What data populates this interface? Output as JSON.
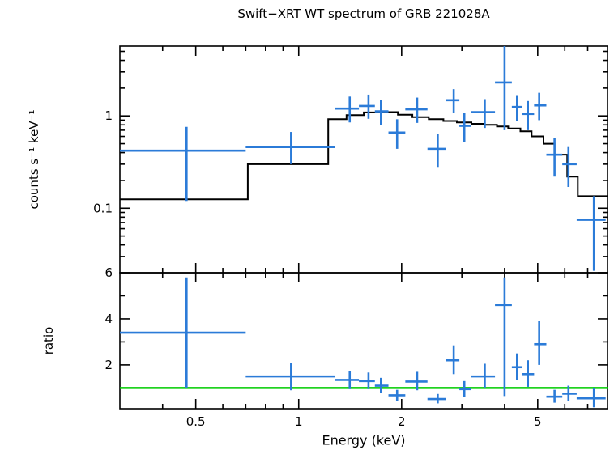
{
  "page": {
    "background": "#ffffff"
  },
  "chart_data": {
    "type": "scatter",
    "title": "Swift−XRT WT spectrum of GRB 221028A",
    "xlabel": "Energy (keV)",
    "x_scale": "log",
    "x_range": [
      0.3,
      8.0
    ],
    "x_ticks_labeled": [
      0.5,
      1,
      2,
      5
    ],
    "x_ticks_minor": [
      0.4,
      0.6,
      0.7,
      0.8,
      0.9,
      3,
      4,
      6,
      7
    ],
    "legend": "none",
    "grid": "off",
    "colors": {
      "data": "#2b7bd8",
      "model": "#000000",
      "ratio_line": "#00cc00",
      "frame": "#000000",
      "background": "#ffffff"
    },
    "panels": [
      {
        "name": "spectrum",
        "ylabel": "counts s⁻¹ keV⁻¹",
        "y_scale": "log",
        "y_range": [
          0.02,
          5.7
        ],
        "y_ticks_labeled": [
          0.1,
          1
        ],
        "y_ticks_minor": [
          0.03,
          0.04,
          0.05,
          0.06,
          0.07,
          0.08,
          0.09,
          0.2,
          0.3,
          0.4,
          0.5,
          0.6,
          0.7,
          0.8,
          0.9,
          2,
          3,
          4,
          5
        ],
        "point_format": [
          "x",
          "xlow",
          "xhigh",
          "y",
          "ylow",
          "yhigh"
        ],
        "points": [
          [
            0.47,
            0.3,
            0.7,
            0.42,
            0.12,
            0.76
          ],
          [
            0.95,
            0.7,
            1.28,
            0.46,
            0.3,
            0.67
          ],
          [
            1.41,
            1.28,
            1.5,
            1.2,
            0.85,
            1.62
          ],
          [
            1.6,
            1.5,
            1.67,
            1.28,
            0.93,
            1.7
          ],
          [
            1.74,
            1.67,
            1.83,
            1.12,
            0.8,
            1.5
          ],
          [
            1.94,
            1.83,
            2.05,
            0.66,
            0.44,
            0.92
          ],
          [
            2.22,
            2.05,
            2.38,
            1.18,
            0.84,
            1.58
          ],
          [
            2.55,
            2.38,
            2.7,
            0.44,
            0.28,
            0.64
          ],
          [
            2.84,
            2.7,
            2.95,
            1.48,
            1.08,
            1.95
          ],
          [
            3.05,
            2.95,
            3.2,
            0.78,
            0.52,
            1.08
          ],
          [
            3.5,
            3.2,
            3.75,
            1.1,
            0.74,
            1.52
          ],
          [
            4.0,
            3.75,
            4.2,
            2.3,
            0.7,
            5.7
          ],
          [
            4.35,
            4.2,
            4.5,
            1.25,
            0.88,
            1.68
          ],
          [
            4.68,
            4.5,
            4.88,
            1.05,
            0.7,
            1.45
          ],
          [
            5.05,
            4.88,
            5.3,
            1.3,
            0.9,
            1.78
          ],
          [
            5.6,
            5.3,
            5.9,
            0.38,
            0.22,
            0.58
          ],
          [
            6.15,
            5.9,
            6.5,
            0.3,
            0.17,
            0.46
          ],
          [
            7.3,
            6.5,
            7.9,
            0.075,
            0.021,
            0.135
          ]
        ],
        "model_step_format": [
          "e_low",
          "e_high",
          "value"
        ],
        "model_steps": [
          [
            0.3,
            0.71,
            0.125
          ],
          [
            0.71,
            1.22,
            0.3
          ],
          [
            1.22,
            1.38,
            0.92
          ],
          [
            1.38,
            1.55,
            1.02
          ],
          [
            1.55,
            1.75,
            1.09
          ],
          [
            1.75,
            1.95,
            1.1
          ],
          [
            1.95,
            2.15,
            1.03
          ],
          [
            2.15,
            2.4,
            0.97
          ],
          [
            2.4,
            2.65,
            0.92
          ],
          [
            2.65,
            2.9,
            0.88
          ],
          [
            2.9,
            3.2,
            0.85
          ],
          [
            3.2,
            3.5,
            0.82
          ],
          [
            3.5,
            3.8,
            0.8
          ],
          [
            3.8,
            4.1,
            0.77
          ],
          [
            4.1,
            4.45,
            0.73
          ],
          [
            4.45,
            4.8,
            0.68
          ],
          [
            4.8,
            5.2,
            0.6
          ],
          [
            5.2,
            5.6,
            0.5
          ],
          [
            5.6,
            6.1,
            0.38
          ],
          [
            6.1,
            6.55,
            0.22
          ],
          [
            6.55,
            8.0,
            0.135
          ]
        ]
      },
      {
        "name": "ratio",
        "ylabel": "ratio",
        "y_scale": "linear",
        "y_range": [
          0.1,
          6.0
        ],
        "y_ticks_labeled": [
          2,
          4,
          6
        ],
        "y_ticks_minor": [
          1,
          3,
          5
        ],
        "reference_line": 1.0,
        "point_format": [
          "x",
          "xlow",
          "xhigh",
          "y",
          "ylow",
          "yhigh"
        ],
        "points": [
          [
            0.47,
            0.3,
            0.7,
            3.4,
            1.0,
            5.8
          ],
          [
            0.95,
            0.7,
            1.28,
            1.5,
            0.9,
            2.1
          ],
          [
            1.41,
            1.28,
            1.5,
            1.35,
            0.95,
            1.75
          ],
          [
            1.6,
            1.5,
            1.67,
            1.3,
            0.95,
            1.67
          ],
          [
            1.74,
            1.67,
            1.83,
            1.1,
            0.78,
            1.44
          ],
          [
            1.94,
            1.83,
            2.05,
            0.68,
            0.45,
            0.92
          ],
          [
            2.22,
            2.05,
            2.38,
            1.28,
            0.9,
            1.7
          ],
          [
            2.55,
            2.38,
            2.7,
            0.52,
            0.33,
            0.74
          ],
          [
            2.84,
            2.7,
            2.95,
            2.2,
            1.6,
            2.85
          ],
          [
            3.05,
            2.95,
            3.2,
            0.95,
            0.62,
            1.3
          ],
          [
            3.5,
            3.2,
            3.75,
            1.5,
            1.0,
            2.05
          ],
          [
            4.0,
            3.75,
            4.2,
            4.6,
            0.65,
            5.8
          ],
          [
            4.35,
            4.2,
            4.5,
            1.9,
            1.35,
            2.5
          ],
          [
            4.68,
            4.5,
            4.88,
            1.6,
            1.05,
            2.2
          ],
          [
            5.05,
            4.88,
            5.3,
            2.9,
            2.0,
            3.9
          ],
          [
            5.6,
            5.3,
            5.9,
            0.62,
            0.36,
            0.92
          ],
          [
            6.15,
            5.9,
            6.5,
            0.75,
            0.43,
            1.1
          ],
          [
            7.3,
            6.5,
            7.9,
            0.55,
            0.16,
            0.98
          ]
        ]
      }
    ]
  }
}
